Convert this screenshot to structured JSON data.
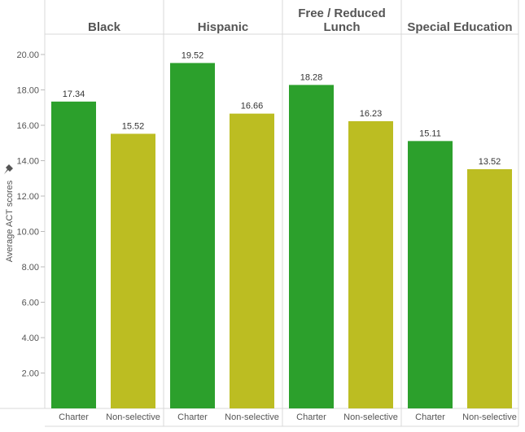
{
  "chart_data": {
    "type": "bar",
    "ylabel": "Average ACT scores",
    "ylim": [
      0,
      20.5
    ],
    "yticks": [
      "2.00",
      "4.00",
      "6.00",
      "8.00",
      "10.00",
      "12.00",
      "14.00",
      "16.00",
      "18.00",
      "20.00"
    ],
    "grid": false,
    "legend": "none",
    "categories": [
      "Charter",
      "Non-selective"
    ],
    "colors": {
      "Charter": "#2ca02c",
      "Non-selective": "#bcbd22"
    },
    "panels": [
      {
        "title": "Black",
        "values": [
          17.34,
          15.52
        ],
        "labels": [
          "17.34",
          "15.52"
        ]
      },
      {
        "title": "Hispanic",
        "values": [
          19.52,
          16.66
        ],
        "labels": [
          "19.52",
          "16.66"
        ]
      },
      {
        "title": "Free / Reduced\nLunch",
        "values": [
          18.28,
          16.23
        ],
        "labels": [
          "18.28",
          "16.23"
        ]
      },
      {
        "title": "Special Education",
        "values": [
          15.11,
          13.52
        ],
        "labels": [
          "15.11",
          "13.52"
        ]
      }
    ]
  },
  "ui": {
    "pin_icon": "pin-icon"
  }
}
